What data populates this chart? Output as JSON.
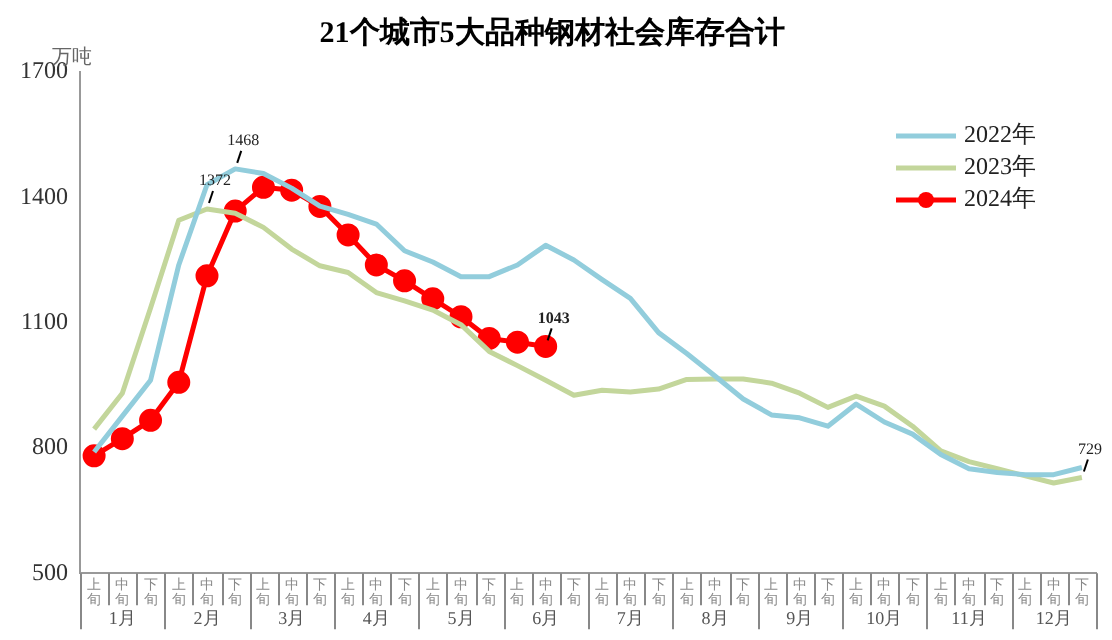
{
  "chart_data": {
    "type": "line",
    "title": "21个城市5大品种钢材社会库存合计",
    "ylabel": "万吨",
    "categories": [
      "上旬",
      "中旬",
      "下旬",
      "上旬",
      "中旬",
      "下旬",
      "上旬",
      "中旬",
      "下旬",
      "上旬",
      "中旬",
      "下旬",
      "上旬",
      "中旬",
      "下旬",
      "上旬",
      "中旬",
      "下旬",
      "上旬",
      "中旬",
      "下旬",
      "上旬",
      "中旬",
      "下旬",
      "上旬",
      "中旬",
      "下旬",
      "上旬",
      "中旬",
      "下旬",
      "上旬",
      "中旬",
      "下旬",
      "上旬",
      "中旬",
      "下旬"
    ],
    "annotations": [
      "1月",
      "2月",
      "3月",
      "4月",
      "5月",
      "6月",
      "7月",
      "8月",
      "9月",
      "10月",
      "11月",
      "12月"
    ],
    "series": [
      {
        "name": "2022年",
        "color": "#92cddc",
        "marker": "none",
        "values": [
          790,
          876,
          962,
          1238,
          1430,
          1468,
          1457,
          1422,
          1379,
          1359,
          1336,
          1272,
          1245,
          1210,
          1210,
          1238,
          1285,
          1250,
          1203,
          1158,
          1076,
          1026,
          972,
          917,
          879,
          872,
          852,
          905,
          862,
          833,
          784,
          750,
          741,
          736,
          736,
          753
        ],
        "value_labels": [
          null,
          null,
          null,
          null,
          null,
          "1468",
          null,
          null,
          null,
          null,
          null,
          null,
          null,
          null,
          null,
          null,
          null,
          null,
          null,
          null,
          null,
          null,
          null,
          null,
          null,
          null,
          null,
          null,
          null,
          null,
          null,
          null,
          null,
          null,
          null,
          null
        ]
      },
      {
        "name": "2023年",
        "color": "#c3d69b",
        "marker": "none",
        "values": [
          845,
          931,
          1135,
          1345,
          1372,
          1362,
          1328,
          1276,
          1236,
          1220,
          1172,
          1152,
          1130,
          1095,
          1031,
          997,
          962,
          926,
          938,
          934,
          941,
          964,
          965,
          965,
          955,
          931,
          897,
          924,
          900,
          852,
          793,
          767,
          750,
          733,
          716,
          729
        ],
        "value_labels": [
          null,
          null,
          null,
          null,
          "1372",
          null,
          null,
          null,
          null,
          null,
          null,
          null,
          null,
          null,
          null,
          null,
          null,
          null,
          null,
          null,
          null,
          null,
          null,
          null,
          null,
          null,
          null,
          null,
          null,
          null,
          null,
          null,
          null,
          null,
          null,
          "729"
        ]
      },
      {
        "name": "2024年",
        "color": "#ff0000",
        "marker": "circle",
        "values": [
          781,
          822,
          866,
          957,
          1212,
          1367,
          1424,
          1417,
          1378,
          1310,
          1238,
          1200,
          1157,
          1114,
          1062,
          1053,
          1043,
          null,
          null,
          null,
          null,
          null,
          null,
          null,
          null,
          null,
          null,
          null,
          null,
          null,
          null,
          null,
          null,
          null,
          null,
          null
        ],
        "value_labels": [
          null,
          null,
          null,
          null,
          null,
          null,
          null,
          null,
          null,
          null,
          null,
          null,
          null,
          null,
          null,
          null,
          "1043",
          null,
          null,
          null,
          null,
          null,
          null,
          null,
          null,
          null,
          null,
          null,
          null,
          null,
          null,
          null,
          null,
          null,
          null,
          null
        ]
      }
    ],
    "ylim": [
      500,
      1700
    ],
    "yticks": [
      500,
      800,
      1100,
      1400,
      1700
    ],
    "grid": false,
    "legend": "top right"
  }
}
